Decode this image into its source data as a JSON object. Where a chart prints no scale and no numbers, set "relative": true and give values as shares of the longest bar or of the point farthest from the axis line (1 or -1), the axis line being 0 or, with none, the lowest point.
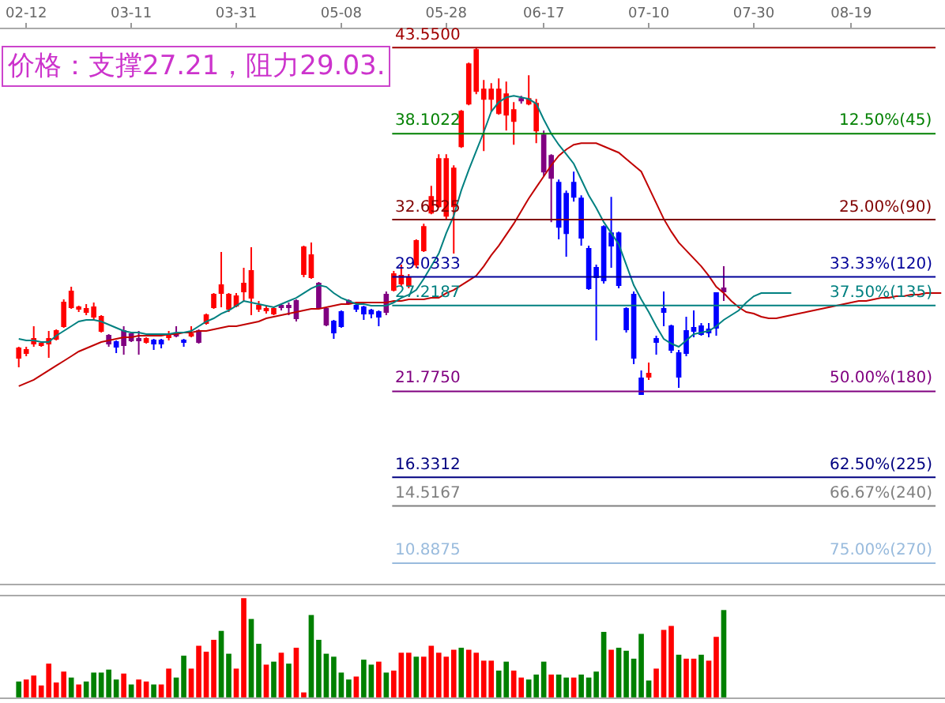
{
  "chart_data": [
    {
      "type": "candlestick",
      "title": "价格：支撑27.21，阻力29.03.",
      "categories": [
        null,
        "02-12",
        null,
        null,
        null,
        null,
        null,
        null,
        null,
        null,
        null,
        null,
        null,
        null,
        null,
        "03-11",
        null,
        null,
        null,
        null,
        null,
        null,
        null,
        null,
        null,
        null,
        null,
        null,
        null,
        "03-31",
        null,
        null,
        null,
        null,
        null,
        null,
        null,
        null,
        null,
        null,
        null,
        null,
        null,
        "05-08",
        null,
        null,
        null,
        null,
        null,
        null,
        null,
        null,
        null,
        null,
        null,
        null,
        null,
        "05-28",
        null,
        null,
        null,
        null,
        null,
        null,
        null,
        null,
        null,
        null,
        null,
        null,
        "06-17",
        null,
        null,
        null,
        null,
        null,
        null,
        null,
        null,
        null,
        null,
        null,
        null,
        null,
        "07-10",
        null,
        null,
        null,
        null,
        null,
        null,
        null,
        null,
        null,
        null,
        null,
        null,
        null,
        "07-30",
        null,
        null,
        null,
        null,
        null,
        null,
        null,
        null,
        null,
        null,
        null,
        null,
        "08-19",
        null,
        null,
        null,
        null,
        null,
        null,
        null,
        null,
        null,
        null,
        null,
        null
      ],
      "ohlc": [
        [
          23.9,
          24.6,
          23.3,
          24.5
        ],
        [
          24.2,
          24.6,
          24.0,
          24.4
        ],
        [
          24.8,
          25.9,
          24.6,
          25.1
        ],
        [
          24.7,
          24.9,
          24.6,
          24.8
        ],
        [
          24.8,
          25.6,
          23.9,
          25.1
        ],
        [
          25.1,
          25.7,
          25.0,
          25.6
        ],
        [
          25.9,
          27.6,
          25.8,
          27.4
        ],
        [
          27.1,
          28.4,
          27.0,
          28.1
        ],
        [
          27.0,
          27.2,
          26.8,
          27.1
        ],
        [
          26.8,
          27.3,
          26.6,
          27.0
        ],
        [
          26.5,
          27.4,
          26.3,
          27.1
        ],
        [
          25.6,
          26.6,
          25.5,
          26.5
        ],
        [
          25.3,
          25.4,
          24.6,
          24.8
        ],
        [
          24.9,
          25.0,
          24.2,
          24.6
        ],
        [
          25.6,
          25.9,
          24.1,
          24.7
        ],
        [
          25.4,
          25.5,
          24.9,
          25.0
        ],
        [
          25.1,
          25.6,
          24.1,
          25.0
        ],
        [
          24.9,
          25.2,
          24.8,
          25.1
        ],
        [
          25.0,
          25.1,
          24.4,
          24.8
        ],
        [
          25.0,
          25.1,
          24.5,
          24.8
        ],
        [
          25.2,
          25.6,
          25.0,
          25.3
        ],
        [
          25.4,
          25.9,
          25.2,
          25.3
        ],
        [
          25.0,
          25.1,
          24.6,
          24.9
        ],
        [
          25.3,
          25.9,
          25.2,
          25.4
        ],
        [
          24.9,
          25.7,
          24.8,
          25.6
        ],
        [
          26.1,
          26.7,
          26.0,
          26.6
        ],
        [
          27.1,
          28.0,
          27.0,
          27.9
        ],
        [
          28.0,
          30.6,
          27.1,
          28.5
        ],
        [
          27.0,
          28.0,
          26.8,
          27.9
        ],
        [
          27.2,
          28.0,
          27.1,
          27.8
        ],
        [
          28.1,
          29.6,
          27.5,
          28.6
        ],
        [
          27.7,
          30.9,
          26.6,
          29.4
        ],
        [
          27.0,
          27.5,
          26.8,
          27.2
        ],
        [
          26.9,
          27.2,
          26.7,
          27.0
        ],
        [
          26.7,
          27.1,
          26.6,
          27.0
        ],
        [
          27.2,
          27.3,
          26.9,
          27.1
        ],
        [
          27.2,
          27.4,
          26.6,
          27.1
        ],
        [
          27.5,
          27.6,
          26.2,
          26.4
        ],
        [
          29.2,
          31.0,
          29.0,
          30.9
        ],
        [
          29.0,
          31.2,
          28.9,
          30.4
        ],
        [
          28.6,
          28.7,
          27.0,
          27.1
        ],
        [
          27.0,
          27.1,
          25.9,
          26.0
        ],
        [
          26.2,
          26.3,
          25.1,
          25.5
        ],
        [
          26.8,
          26.9,
          25.8,
          25.9
        ],
        [
          27.5,
          27.6,
          27.3,
          27.4
        ],
        [
          27.2,
          27.3,
          26.8,
          27.0
        ],
        [
          27.1,
          27.2,
          26.3,
          26.7
        ],
        [
          26.9,
          27.0,
          26.4,
          26.7
        ],
        [
          26.8,
          26.9,
          25.9,
          26.5
        ],
        [
          26.8,
          28.1,
          26.6,
          27.9
        ],
        [
          28.2,
          29.4,
          28.1,
          29.2
        ],
        [
          28.6,
          29.8,
          28.4,
          29.1
        ],
        [
          28.5,
          29.2,
          28.3,
          29.0
        ],
        [
          29.8,
          31.4,
          29.6,
          31.3
        ],
        [
          30.7,
          32.4,
          30.6,
          32.2
        ],
        [
          33.1,
          34.8,
          33.0,
          34.1
        ],
        [
          33.5,
          36.8,
          33.4,
          36.5
        ],
        [
          32.9,
          36.8,
          32.7,
          36.5
        ],
        [
          33.5,
          36.1,
          30.5,
          35.9
        ],
        [
          37.3,
          39.6,
          37.2,
          39.5
        ],
        [
          40.0,
          42.6,
          39.9,
          42.5
        ],
        [
          40.8,
          43.55,
          40.6,
          43.4
        ],
        [
          40.3,
          41.5,
          37.0,
          40.9
        ],
        [
          40.3,
          41.3,
          39.5,
          40.9
        ],
        [
          39.4,
          41.6,
          39.3,
          40.9
        ],
        [
          39.3,
          41.4,
          38.3,
          40.6
        ],
        [
          38.9,
          40.1,
          37.4,
          39.6
        ],
        [
          40.3,
          40.5,
          40.0,
          40.2
        ],
        [
          40.0,
          41.8,
          39.9,
          40.3
        ],
        [
          38.3,
          40.3,
          37.5,
          40.0
        ],
        [
          38.0,
          38.3,
          35.4,
          35.7
        ],
        [
          36.7,
          36.8,
          32.5,
          35.3
        ],
        [
          35.0,
          35.2,
          31.4,
          32.2
        ],
        [
          34.3,
          34.5,
          30.3,
          31.8
        ],
        [
          35.0,
          35.7,
          33.8,
          34.1
        ],
        [
          34.0,
          34.2,
          31.0,
          31.5
        ],
        [
          30.8,
          31.0,
          28.2,
          28.3
        ],
        [
          29.6,
          29.8,
          25.0,
          29.0
        ],
        [
          32.2,
          32.3,
          28.6,
          28.8
        ],
        [
          31.8,
          34.1,
          29.6,
          31.0
        ],
        [
          31.8,
          31.9,
          28.3,
          28.5
        ],
        [
          27.0,
          27.1,
          25.5,
          25.7
        ],
        [
          27.9,
          28.1,
          23.5,
          23.9
        ],
        [
          22.6,
          23.1,
          21.6,
          21.6
        ],
        [
          22.7,
          23.6,
          22.5,
          22.9
        ],
        [
          25.1,
          25.3,
          24.1,
          24.9
        ],
        [
          27.0,
          28.1,
          25.9,
          26.8
        ],
        [
          25.9,
          26.0,
          24.2,
          24.4
        ],
        [
          24.2,
          24.4,
          22.0,
          22.7
        ],
        [
          25.6,
          26.5,
          24.0,
          24.2
        ],
        [
          25.8,
          26.9,
          25.2,
          25.6
        ],
        [
          25.9,
          26.1,
          25.3,
          25.4
        ],
        [
          25.7,
          26.1,
          25.2,
          25.5
        ],
        [
          28.0,
          28.0,
          25.3,
          25.8
        ],
        [
          28.3,
          29.7,
          27.5,
          28.1
        ],
        null,
        null,
        null,
        null,
        null,
        null,
        null,
        null,
        null,
        null,
        null,
        null,
        null,
        null,
        null,
        null,
        null,
        null,
        null,
        null,
        null,
        null,
        null,
        null,
        null,
        null,
        null,
        null,
        null
      ],
      "colors": [
        "#ff0000",
        "#ff0000",
        "#ff0000",
        "#ff0000",
        "#ff0000",
        "#ff0000",
        "#ff0000",
        "#ff0000",
        "#ff0000",
        "#ff0000",
        "#ff0000",
        "#ff0000",
        "#800080",
        "#0000ff",
        "#800080",
        "#800080",
        "#800080",
        "#ff0000",
        "#0000ff",
        "#0000ff",
        "#ff0000",
        "#800080",
        "#0000ff",
        "#ff0000",
        "#800080",
        "#ff0000",
        "#ff0000",
        "#ff0000",
        "#ff0000",
        "#ff0000",
        "#ff0000",
        "#ff0000",
        "#ff0000",
        "#ff0000",
        "#ff0000",
        "#800080",
        "#800080",
        "#800080",
        "#ff0000",
        "#ff0000",
        "#800080",
        "#800080",
        "#0000ff",
        "#0000ff",
        "#800080",
        "#0000ff",
        "#0000ff",
        "#0000ff",
        "#0000ff",
        "#800080",
        "#ff0000",
        "#ff0000",
        "#ff0000",
        "#ff0000",
        "#ff0000",
        "#ff0000",
        "#ff0000",
        "#ff0000",
        "#ff0000",
        "#ff0000",
        "#ff0000",
        "#ff0000",
        "#ff0000",
        "#ff0000",
        "#ff0000",
        "#ff0000",
        "#ff0000",
        "#800080",
        "#ff0000",
        "#ff0000",
        "#800080",
        "#800080",
        "#0000ff",
        "#0000ff",
        "#0000ff",
        "#0000ff",
        "#0000ff",
        "#0000ff",
        "#0000ff",
        "#0000ff",
        "#0000ff",
        "#0000ff",
        "#0000ff",
        "#0000ff",
        "#ff0000",
        "#0000ff",
        "#0000ff",
        "#0000ff",
        "#0000ff",
        "#0000ff",
        "#0000ff",
        "#0000ff",
        "#0000ff",
        "#0000ff",
        "#800080",
        null,
        null,
        null,
        null,
        null,
        null,
        null,
        null,
        null,
        null,
        null,
        null,
        null,
        null,
        null,
        null,
        null,
        null,
        null,
        null,
        null,
        null,
        null,
        null,
        null,
        null,
        null,
        null,
        null
      ],
      "series": [
        {
          "type": "line",
          "color": "#c00000",
          "values": [
            22.1,
            22.3,
            22.5,
            22.8,
            23.1,
            23.4,
            23.7,
            24.0,
            24.3,
            24.5,
            24.7,
            24.9,
            25.0,
            25.1,
            25.2,
            25.2,
            25.3,
            25.3,
            25.3,
            25.3,
            25.4,
            25.4,
            25.5,
            25.5,
            25.6,
            25.6,
            25.7,
            25.8,
            25.9,
            25.9,
            26.0,
            26.1,
            26.2,
            26.4,
            26.5,
            26.6,
            26.7,
            26.8,
            26.9,
            27.0,
            27.0,
            27.1,
            27.2,
            27.3,
            27.3,
            27.4,
            27.4,
            27.4,
            27.4,
            27.4,
            27.5,
            27.5,
            27.6,
            27.6,
            27.6,
            27.7,
            27.7,
            28.0,
            28.2,
            28.5,
            28.8,
            29.1,
            29.7,
            30.4,
            31.0,
            31.7,
            32.4,
            33.2,
            34.0,
            34.7,
            35.4,
            36.1,
            36.7,
            37.1,
            37.4,
            37.5,
            37.5,
            37.5,
            37.3,
            37.1,
            36.9,
            36.5,
            36.1,
            35.7,
            34.7,
            33.7,
            32.7,
            31.9,
            31.2,
            30.7,
            30.2,
            29.7,
            29.1,
            28.4,
            28.0,
            27.5,
            27.1,
            26.8,
            26.7,
            26.5,
            26.4,
            26.4,
            26.5,
            26.6,
            26.7,
            26.8,
            26.9,
            27.0,
            27.1,
            27.2,
            27.3,
            27.4,
            27.5,
            27.5,
            27.6,
            27.7,
            27.7,
            27.8,
            27.8,
            27.9,
            27.9,
            28.0,
            28.0,
            28.0
          ]
        },
        {
          "type": "line",
          "color": "#008080",
          "values": [
            25.1,
            25.0,
            25.0,
            24.9,
            24.9,
            25.3,
            25.6,
            25.9,
            26.2,
            26.3,
            26.3,
            26.2,
            26.0,
            25.8,
            25.6,
            25.5,
            25.5,
            25.4,
            25.4,
            25.4,
            25.4,
            25.5,
            25.5,
            25.6,
            25.9,
            26.2,
            26.4,
            26.7,
            26.9,
            27.2,
            27.5,
            27.4,
            27.3,
            27.2,
            27.1,
            27.3,
            27.5,
            27.7,
            28.0,
            28.3,
            28.5,
            28.4,
            28.0,
            27.7,
            27.5,
            27.3,
            27.3,
            27.2,
            27.2,
            27.2,
            27.4,
            27.7,
            27.9,
            28.2,
            28.9,
            29.7,
            30.5,
            31.8,
            32.9,
            34.5,
            35.8,
            37.0,
            38.2,
            39.5,
            40.1,
            40.4,
            40.5,
            40.4,
            40.3,
            40.0,
            39.0,
            38.1,
            37.4,
            36.8,
            36.2,
            35.2,
            34.2,
            33.4,
            32.5,
            31.8,
            31.1,
            29.8,
            28.5,
            27.6,
            26.8,
            25.9,
            25.1,
            24.8,
            24.6,
            25.0,
            25.4,
            25.5,
            25.6,
            25.9,
            26.3,
            26.6,
            26.9,
            27.4,
            27.8,
            28.0,
            28.0,
            28.0,
            28.0,
            28.0,
            null,
            null,
            null,
            null,
            null,
            null,
            null,
            null,
            null,
            null,
            null,
            null,
            null,
            null,
            null,
            null,
            null,
            null,
            null,
            null
          ]
        }
      ],
      "ylim": [
        9.6,
        44.7
      ],
      "ref_lines": [
        {
          "axis": "y",
          "value": 43.55,
          "label": "43.5500",
          "color": "#a00000"
        },
        {
          "axis": "y",
          "value": 38.1022,
          "label": "38.1022",
          "color": "#008000"
        },
        {
          "axis": "y",
          "value": 32.6525,
          "label": "32.6525",
          "color": "#800000"
        },
        {
          "axis": "y",
          "value": 29.0333,
          "label": "29.0333",
          "color": "#000099"
        },
        {
          "axis": "y",
          "value": 27.2187,
          "label": "27.2187",
          "color": "#008080"
        },
        {
          "axis": "y",
          "value": 21.775,
          "label": "21.7750",
          "color": "#800080"
        },
        {
          "axis": "y",
          "value": 16.3312,
          "label": "16.3312",
          "color": "#000080"
        },
        {
          "axis": "y",
          "value": 14.5167,
          "label": "14.5167",
          "color": "#808080"
        },
        {
          "axis": "y",
          "value": 10.8875,
          "label": "10.8875",
          "color": "#99bbdd"
        }
      ],
      "annotations": [
        {
          "text": "12.50%(45)",
          "y": 38.1022
        },
        {
          "text": "25.00%(90)",
          "y": 32.6525
        },
        {
          "text": "33.33%(120)",
          "y": 29.0333
        },
        {
          "text": "37.50%(135)",
          "y": 27.2187
        },
        {
          "text": "50.00%(180)",
          "y": 21.775
        },
        {
          "text": "62.50%(225)",
          "y": 16.3312
        },
        {
          "text": "66.67%(240)",
          "y": 14.5167
        },
        {
          "text": "75.00%(270)",
          "y": 10.8875
        }
      ],
      "tick_labels": "x"
    },
    {
      "type": "bar",
      "relative": true,
      "tick_labels": false,
      "categories": [
        null,
        null,
        null,
        null,
        null,
        null,
        null,
        null,
        null,
        null,
        null,
        null,
        null,
        null,
        null,
        null,
        null,
        null,
        null,
        null,
        null,
        null,
        null,
        null,
        null,
        null,
        null,
        null,
        null,
        null,
        null,
        null,
        null,
        null,
        null,
        null,
        null,
        null,
        null,
        null,
        null,
        null,
        null,
        null,
        null,
        null,
        null,
        null,
        null,
        null,
        null,
        null,
        null,
        null,
        null,
        null,
        null,
        null,
        null,
        null,
        null,
        null,
        null,
        null,
        null,
        null,
        null,
        null,
        null,
        null,
        null,
        null,
        null,
        null,
        null,
        null,
        null,
        null,
        null,
        null,
        null,
        null,
        null,
        null,
        null,
        null,
        null,
        null,
        null,
        null,
        null,
        null,
        null,
        null,
        null,
        null,
        null,
        null,
        null,
        null,
        null,
        null,
        null,
        null,
        null,
        null,
        null,
        null,
        null,
        null,
        null,
        null,
        null,
        null,
        null,
        null,
        null,
        null,
        null,
        null,
        null,
        null,
        null,
        null
      ],
      "values": [
        0.16,
        0.18,
        0.22,
        0.12,
        0.34,
        0.15,
        0.26,
        0.2,
        0.13,
        0.16,
        0.25,
        0.25,
        0.28,
        0.18,
        0.24,
        0.13,
        0.18,
        0.16,
        0.13,
        0.13,
        0.29,
        0.2,
        0.42,
        0.29,
        0.52,
        0.46,
        0.58,
        0.67,
        0.44,
        0.29,
        1,
        0.79,
        0.54,
        0.33,
        0.36,
        0.45,
        0.34,
        0.5,
        0.05,
        0.83,
        0.58,
        0.44,
        0.41,
        0.25,
        0.18,
        0.21,
        0.38,
        0.33,
        0.36,
        0.25,
        0.27,
        0.45,
        0.45,
        0.41,
        0.41,
        0.52,
        0.45,
        0.41,
        0.48,
        0.5,
        0.48,
        0.45,
        0.37,
        0.37,
        0.27,
        0.36,
        0.27,
        0.2,
        0.18,
        0.23,
        0.36,
        0.23,
        0.23,
        0.2,
        0.2,
        0.23,
        0.2,
        0.26,
        0.66,
        0.48,
        0.5,
        0.47,
        0.39,
        0.64,
        0.17,
        0.29,
        0.68,
        0.72,
        0.43,
        0.39,
        0.39,
        0.43,
        0.37,
        0.61,
        0.88,
        null,
        null,
        null,
        null,
        null,
        null,
        null,
        null,
        null,
        null,
        null,
        null,
        null,
        null,
        null,
        null,
        null,
        null,
        null,
        null,
        null,
        null,
        null,
        null,
        null,
        null,
        null,
        null,
        null
      ],
      "colors": [
        "#008000",
        "#ff0000",
        "#ff0000",
        "#ff0000",
        "#ff0000",
        "#ff0000",
        "#ff0000",
        "#008000",
        "#ff0000",
        "#008000",
        "#008000",
        "#008000",
        "#008000",
        "#008000",
        "#ff0000",
        "#008000",
        "#ff0000",
        "#ff0000",
        "#008000",
        "#ff0000",
        "#ff0000",
        "#008000",
        "#008000",
        "#ff0000",
        "#ff0000",
        "#ff0000",
        "#ff0000",
        "#008000",
        "#008000",
        "#ff0000",
        "#ff0000",
        "#008000",
        "#008000",
        "#ff0000",
        "#008000",
        "#ff0000",
        "#008000",
        "#ff0000",
        "#ff0000",
        "#008000",
        "#008000",
        "#008000",
        "#008000",
        "#008000",
        "#008000",
        "#ff0000",
        "#008000",
        "#008000",
        "#ff0000",
        "#008000",
        "#ff0000",
        "#ff0000",
        "#ff0000",
        "#008000",
        "#ff0000",
        "#ff0000",
        "#ff0000",
        "#ff0000",
        "#ff0000",
        "#008000",
        "#ff0000",
        "#ff0000",
        "#ff0000",
        "#ff0000",
        "#008000",
        "#008000",
        "#ff0000",
        "#ff0000",
        "#008000",
        "#008000",
        "#008000",
        "#ff0000",
        "#008000",
        "#008000",
        "#ff0000",
        "#008000",
        "#008000",
        "#008000",
        "#008000",
        "#ff0000",
        "#008000",
        "#008000",
        "#008000",
        "#008000",
        "#008000",
        "#ff0000",
        "#ff0000",
        "#ff0000",
        "#008000",
        "#ff0000",
        "#ff0000",
        "#008000",
        "#ff0000",
        "#ff0000",
        "#008000",
        null,
        null,
        null,
        null,
        null,
        null,
        null,
        null,
        null,
        null,
        null,
        null,
        null,
        null,
        null,
        null,
        null,
        null,
        null,
        null,
        null,
        null,
        null,
        null,
        null,
        null,
        null,
        null,
        null
      ]
    }
  ]
}
